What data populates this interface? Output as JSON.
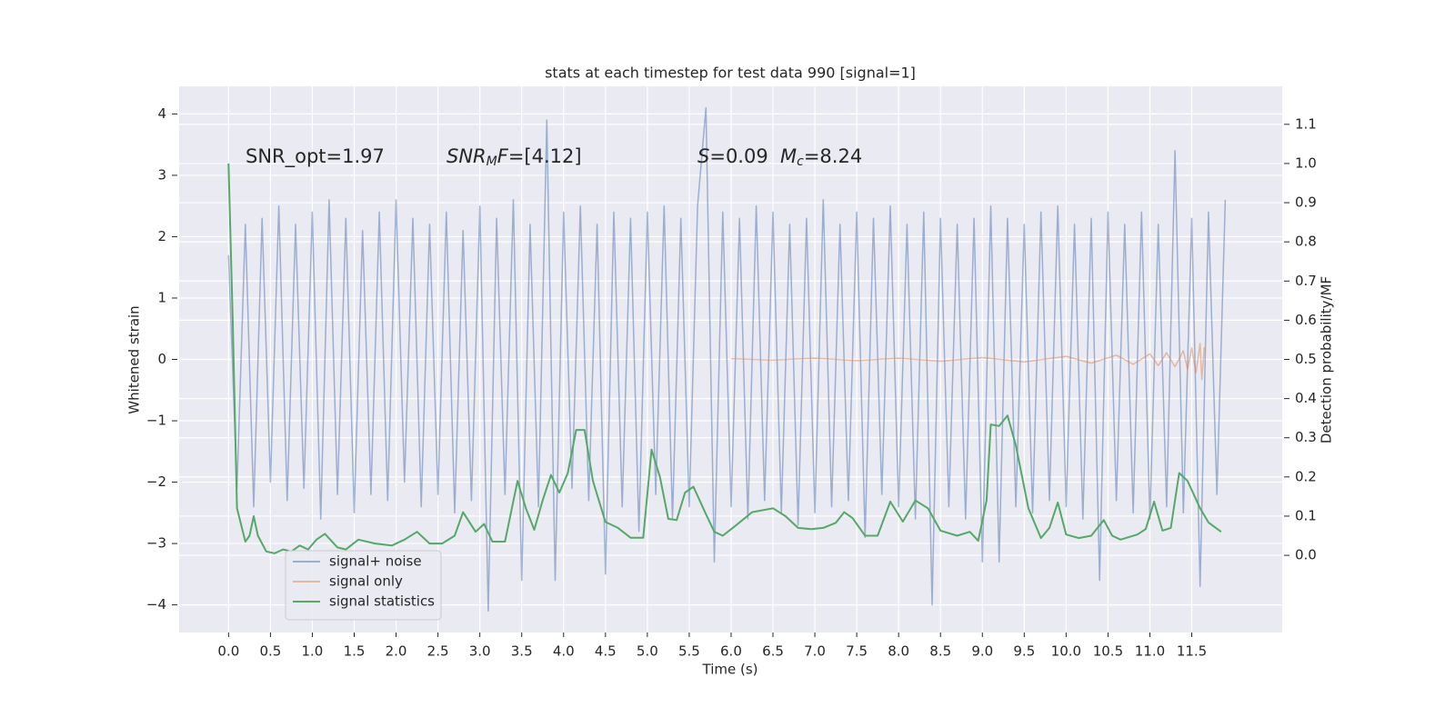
{
  "chart_data": {
    "type": "line",
    "title": "stats at each timestep for test data 990 [signal=1]",
    "xlabel": "Time (s)",
    "ylabel": "Whitened strain",
    "y2label": "Detection probability/MF",
    "xlim": [
      -0.59,
      12.58
    ],
    "ylim": [
      -4.45,
      4.45
    ],
    "y2lim": [
      -0.197,
      1.197
    ],
    "xticks": [
      {
        "value": 0,
        "label": "0.0"
      },
      0.5,
      {
        "value": 1,
        "label": "1.0"
      },
      1.5,
      {
        "value": 2,
        "label": "2.0"
      },
      2.5,
      {
        "value": 3,
        "label": "3.0"
      },
      3.5,
      {
        "value": 4,
        "label": "4.0"
      },
      4.5,
      {
        "value": 5,
        "label": "5.0"
      },
      5.5,
      {
        "value": 6,
        "label": "6.0"
      },
      6.5,
      {
        "value": 7,
        "label": "7.0"
      },
      7.5,
      {
        "value": 8,
        "label": "8.0"
      },
      8.5,
      {
        "value": 9,
        "label": "9.0"
      },
      9.5,
      {
        "value": 10,
        "label": "10.0"
      },
      10.5,
      {
        "value": 11,
        "label": "11.0"
      },
      11.5
    ],
    "yticks": [
      {
        "value": -4,
        "label": "−4"
      },
      {
        "value": -3,
        "label": "−3"
      },
      {
        "value": -2,
        "label": "−2"
      },
      {
        "value": -1,
        "label": "−1"
      },
      0,
      1,
      2,
      3,
      4
    ],
    "y2ticks": [
      {
        "value": 0,
        "label": "0.0"
      },
      0.1,
      0.2,
      0.3,
      0.4,
      0.5,
      0.6,
      0.7,
      0.8,
      0.9,
      {
        "value": 1,
        "label": "1.0"
      },
      1.1
    ],
    "grid": true,
    "legend": "lower left",
    "annotations": [
      [
        {
          "text": "SNR_opt=1.97",
          "italic": false,
          "sub": false
        }
      ],
      [
        {
          "text": "SNR",
          "italic": true,
          "sub": false
        },
        {
          "text": "M",
          "italic": true,
          "sub": true
        },
        {
          "text": "F",
          "italic": true,
          "sub": false
        },
        {
          "text": "=[4.12]",
          "italic": false,
          "sub": false
        }
      ],
      [
        {
          "text": "S",
          "italic": true,
          "sub": false
        },
        {
          "text": "=0.09",
          "italic": false,
          "sub": false
        }
      ],
      [
        {
          "text": "M",
          "italic": true,
          "sub": false
        },
        {
          "text": "c",
          "italic": true,
          "sub": true
        },
        {
          "text": "=8.24",
          "italic": false,
          "sub": false
        }
      ]
    ],
    "series": [
      {
        "name": "signal+ noise",
        "color": "#4c72b0",
        "opacity": 0.5,
        "axis": "y",
        "x": [
          0,
          0.1,
          0.2,
          0.3,
          0.4,
          0.5,
          0.6,
          0.7,
          0.8,
          0.9,
          1,
          1.1,
          1.2,
          1.3,
          1.4,
          1.5,
          1.6,
          1.7,
          1.8,
          1.9,
          2,
          2.1,
          2.2,
          2.3,
          2.4,
          2.5,
          2.6,
          2.7,
          2.8,
          2.9,
          3,
          3.1,
          3.2,
          3.3,
          3.4,
          3.5,
          3.6,
          3.7,
          3.8,
          3.9,
          4,
          4.1,
          4.2,
          4.3,
          4.4,
          4.5,
          4.6,
          4.7,
          4.8,
          4.9,
          5,
          5.1,
          5.2,
          5.3,
          5.4,
          5.5,
          5.6,
          5.7,
          5.8,
          5.9,
          6,
          6.1,
          6.2,
          6.3,
          6.4,
          6.5,
          6.6,
          6.7,
          6.8,
          6.9,
          7,
          7.1,
          7.2,
          7.3,
          7.4,
          7.5,
          7.6,
          7.7,
          7.8,
          7.9,
          8,
          8.1,
          8.2,
          8.3,
          8.4,
          8.5,
          8.6,
          8.7,
          8.8,
          8.9,
          9,
          9.1,
          9.2,
          9.3,
          9.4,
          9.5,
          9.6,
          9.7,
          9.8,
          9.9,
          10,
          10.1,
          10.2,
          10.3,
          10.4,
          10.5,
          10.6,
          10.7,
          10.8,
          10.9,
          11,
          11.1,
          11.2,
          11.3,
          11.4,
          11.5,
          11.6,
          11.7,
          11.8,
          11.9
        ],
        "values": [
          1.7,
          -2.1,
          2.2,
          -2.4,
          2.3,
          -2.0,
          2.5,
          -2.3,
          2.2,
          -2.1,
          2.4,
          -2.6,
          2.6,
          -2.2,
          2.3,
          -2.5,
          2.1,
          -2.2,
          2.4,
          -2.3,
          2.6,
          -2.0,
          2.3,
          -2.4,
          2.2,
          -2.2,
          2.4,
          -2.5,
          2.1,
          -2.3,
          2.5,
          -4.1,
          2.3,
          -2.2,
          2.6,
          -3.6,
          2.2,
          -2.4,
          3.9,
          -3.6,
          2.4,
          -2.1,
          2.5,
          -2.3,
          2.2,
          -3.5,
          2.4,
          -2.4,
          2.3,
          -2.8,
          2.4,
          -2.2,
          2.5,
          -2.6,
          2.3,
          -2.4,
          2.5,
          4.1,
          -3.3,
          2.4,
          -2.4,
          2.3,
          -2.6,
          2.5,
          -2.3,
          2.4,
          -2.5,
          2.2,
          -2.7,
          2.3,
          -2.5,
          2.6,
          -2.4,
          2.2,
          -2.3,
          2.4,
          -2.9,
          2.3,
          -2.2,
          2.5,
          -2.4,
          2.2,
          -2.6,
          2.4,
          -4.0,
          2.3,
          -2.4,
          2.2,
          -2.6,
          2.3,
          -3.3,
          2.5,
          -3.3,
          2.3,
          -2.4,
          2.2,
          -2.5,
          2.4,
          -2.3,
          2.5,
          -2.4,
          2.2,
          -2.6,
          2.3,
          -3.6,
          2.4,
          -2.3,
          2.2,
          -2.5,
          2.4,
          -2.6,
          2.2,
          -2.4,
          3.4,
          -2.5,
          2.3,
          -3.7,
          2.4,
          -2.2,
          2.6
        ]
      },
      {
        "name": "signal only",
        "color": "#dd8452",
        "opacity": 0.5,
        "axis": "y",
        "x": [
          6.0,
          6.5,
          7.0,
          7.5,
          8.0,
          8.5,
          9.0,
          9.5,
          10.0,
          10.3,
          10.6,
          10.8,
          11.0,
          11.1,
          11.2,
          11.3,
          11.4,
          11.45,
          11.5,
          11.55,
          11.6,
          11.62,
          11.65
        ],
        "values": [
          0.01,
          -0.01,
          0.02,
          -0.02,
          0.02,
          -0.03,
          0.03,
          -0.04,
          0.05,
          -0.06,
          0.07,
          -0.08,
          0.09,
          -0.1,
          0.11,
          -0.12,
          0.14,
          -0.16,
          0.19,
          -0.22,
          0.26,
          -0.33,
          0.2
        ]
      },
      {
        "name": "signal statistics",
        "color": "#55a868",
        "opacity": 1,
        "axis": "y2",
        "x": [
          0,
          0.05,
          0.1,
          0.2,
          0.25,
          0.3,
          0.35,
          0.45,
          0.55,
          0.65,
          0.75,
          0.85,
          0.95,
          1.05,
          1.15,
          1.3,
          1.4,
          1.55,
          1.75,
          1.95,
          2.1,
          2.25,
          2.4,
          2.55,
          2.7,
          2.8,
          2.95,
          3.05,
          3.15,
          3.3,
          3.45,
          3.55,
          3.65,
          3.75,
          3.85,
          3.95,
          4.05,
          4.15,
          4.25,
          4.35,
          4.5,
          4.65,
          4.8,
          4.95,
          5.05,
          5.15,
          5.25,
          5.35,
          5.45,
          5.55,
          5.7,
          5.8,
          5.9,
          6.05,
          6.25,
          6.5,
          6.65,
          6.8,
          6.95,
          7.1,
          7.25,
          7.35,
          7.45,
          7.6,
          7.75,
          7.9,
          8.05,
          8.2,
          8.35,
          8.5,
          8.7,
          8.85,
          8.95,
          9.05,
          9.1,
          9.2,
          9.3,
          9.4,
          9.55,
          9.7,
          9.8,
          9.9,
          10.0,
          10.15,
          10.3,
          10.45,
          10.55,
          10.65,
          10.85,
          10.95,
          11.05,
          11.15,
          11.25,
          11.35,
          11.45,
          11.6,
          11.7,
          11.85
        ],
        "values": [
          1.0,
          0.6,
          0.12,
          0.035,
          0.05,
          0.1,
          0.05,
          0.01,
          0.005,
          0.015,
          0.01,
          0.025,
          0.015,
          0.04,
          0.055,
          0.02,
          0.015,
          0.04,
          0.03,
          0.025,
          0.04,
          0.06,
          0.03,
          0.03,
          0.05,
          0.11,
          0.06,
          0.08,
          0.035,
          0.035,
          0.19,
          0.12,
          0.065,
          0.14,
          0.205,
          0.16,
          0.21,
          0.32,
          0.32,
          0.19,
          0.085,
          0.07,
          0.045,
          0.045,
          0.27,
          0.2,
          0.093,
          0.09,
          0.16,
          0.175,
          0.105,
          0.06,
          0.05,
          0.075,
          0.11,
          0.12,
          0.1,
          0.07,
          0.067,
          0.07,
          0.083,
          0.11,
          0.095,
          0.05,
          0.05,
          0.137,
          0.086,
          0.14,
          0.12,
          0.063,
          0.05,
          0.06,
          0.037,
          0.14,
          0.334,
          0.33,
          0.357,
          0.28,
          0.12,
          0.044,
          0.07,
          0.135,
          0.053,
          0.044,
          0.05,
          0.09,
          0.05,
          0.04,
          0.053,
          0.067,
          0.137,
          0.063,
          0.07,
          0.21,
          0.19,
          0.12,
          0.084,
          0.06
        ]
      }
    ]
  }
}
